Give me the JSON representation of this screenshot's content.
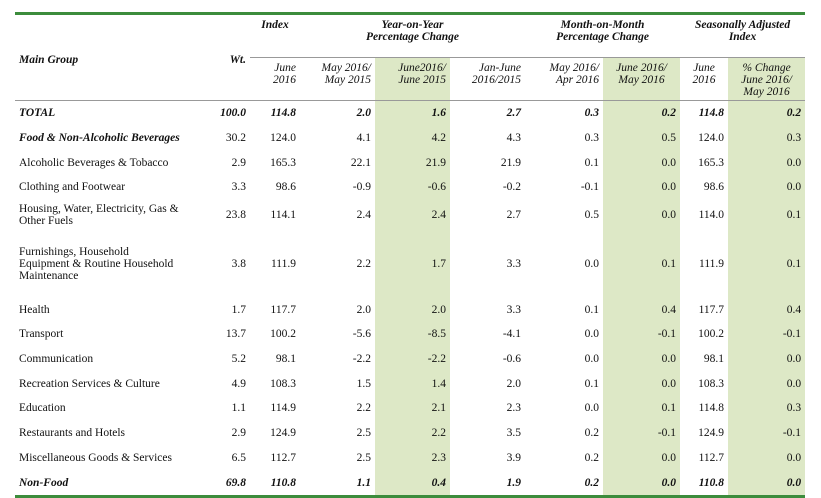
{
  "header": {
    "main_group": "Main Group",
    "weight": "Wt.",
    "groups": [
      "Index",
      "Year-on-Year\nPercentage Change",
      "Month-on-Month\nPercentage Change",
      "Seasonally Adjusted\nIndex"
    ],
    "columns": [
      "June\n2016",
      "May 2016/\nMay 2015",
      "June2016/\nJune 2015",
      "Jan-June\n2016/2015",
      "May 2016/\nApr 2016",
      "June 2016/\nMay 2016",
      "June\n2016",
      "% Change\nJune 2016/\nMay 2016"
    ]
  },
  "table": {
    "rows": [
      [
        "TOTAL",
        "100.0",
        "114.8",
        "2.0",
        "1.6",
        "2.7",
        "0.3",
        "0.2",
        "114.8",
        "0.2"
      ],
      [
        "Food & Non-Alcoholic Beverages",
        "30.2",
        "124.0",
        "4.1",
        "4.2",
        "4.3",
        "0.3",
        "0.5",
        "124.0",
        "0.3"
      ],
      [
        "Alcoholic Beverages & Tobacco",
        "2.9",
        "165.3",
        "22.1",
        "21.9",
        "21.9",
        "0.1",
        "0.0",
        "165.3",
        "0.0"
      ],
      [
        "Clothing and Footwear",
        "3.3",
        "98.6",
        "-0.9",
        "-0.6",
        "-0.2",
        "-0.1",
        "0.0",
        "98.6",
        "0.0"
      ],
      [
        "Housing, Water, Electricity, Gas &\nOther Fuels",
        "23.8",
        "114.1",
        "2.4",
        "2.4",
        "2.7",
        "0.5",
        "0.0",
        "114.0",
        "0.1"
      ],
      [
        "Furnishings, Household\nEquipment  & Routine Household\nMaintenance",
        "3.8",
        "111.9",
        "2.2",
        "1.7",
        "3.3",
        "0.0",
        "0.1",
        "111.9",
        "0.1"
      ],
      [
        "Health",
        "1.7",
        "117.7",
        "2.0",
        "2.0",
        "3.3",
        "0.1",
        "0.4",
        "117.7",
        "0.4"
      ],
      [
        "Transport",
        "13.7",
        "100.2",
        "-5.6",
        "-8.5",
        "-4.1",
        "0.0",
        "-0.1",
        "100.2",
        "-0.1"
      ],
      [
        "Communication",
        "5.2",
        "98.1",
        "-2.2",
        "-2.2",
        "-0.6",
        "0.0",
        "0.0",
        "98.1",
        "0.0"
      ],
      [
        "Recreation Services & Culture",
        "4.9",
        "108.3",
        "1.5",
        "1.4",
        "2.0",
        "0.1",
        "0.0",
        "108.3",
        "0.0"
      ],
      [
        "Education",
        "1.1",
        "114.9",
        "2.2",
        "2.1",
        "2.3",
        "0.0",
        "0.1",
        "114.8",
        "0.3"
      ],
      [
        "Restaurants and Hotels",
        "2.9",
        "124.9",
        "2.5",
        "2.2",
        "3.5",
        "0.2",
        "-0.1",
        "124.9",
        "-0.1"
      ],
      [
        "Miscellaneous Goods & Services",
        "6.5",
        "112.7",
        "2.5",
        "2.3",
        "3.9",
        "0.2",
        "0.0",
        "112.7",
        "0.0"
      ],
      [
        "Non-Food",
        "69.8",
        "110.8",
        "1.1",
        "0.4",
        "1.9",
        "0.2",
        "0.0",
        "110.8",
        "0.0"
      ]
    ]
  }
}
